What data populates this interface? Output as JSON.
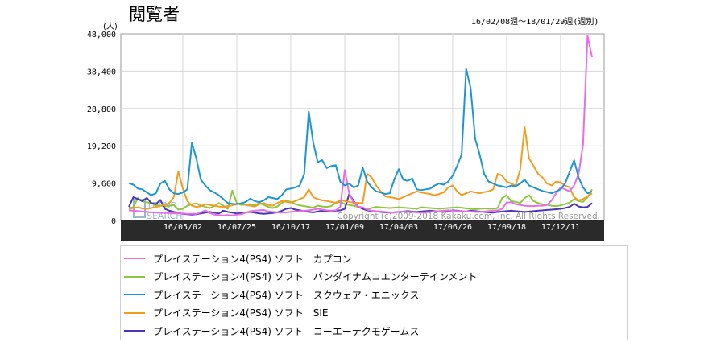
{
  "header": {
    "title": "閲覧者",
    "date_range": "16/02/08週～18/01/29週(週別)",
    "unit": "(人)"
  },
  "watermark": {
    "logo_line1": "TREND",
    "logo_line2": "SEARCH",
    "copyright": "Copyright (c)2009-2018 Kakaku.com, Inc. All Rights Reserved."
  },
  "chart_data": {
    "type": "line",
    "x": [
      "16/02/08",
      "16/02/15",
      "16/02/22",
      "16/02/29",
      "16/03/07",
      "16/03/14",
      "16/03/21",
      "16/03/28",
      "16/04/04",
      "16/04/11",
      "16/04/18",
      "16/04/25",
      "16/05/02",
      "16/05/09",
      "16/05/16",
      "16/05/23",
      "16/05/30",
      "16/06/06",
      "16/06/13",
      "16/06/20",
      "16/06/27",
      "16/07/04",
      "16/07/11",
      "16/07/18",
      "16/07/25",
      "16/08/01",
      "16/08/08",
      "16/08/15",
      "16/08/22",
      "16/08/29",
      "16/09/05",
      "16/09/12",
      "16/09/19",
      "16/09/26",
      "16/10/03",
      "16/10/10",
      "16/10/17",
      "16/10/24",
      "16/10/31",
      "16/11/07",
      "16/11/14",
      "16/11/21",
      "16/11/28",
      "16/12/05",
      "16/12/12",
      "16/12/19",
      "16/12/26",
      "17/01/02",
      "17/01/09",
      "17/01/16",
      "17/01/23",
      "17/01/30",
      "17/02/06",
      "17/02/13",
      "17/02/20",
      "17/02/27",
      "17/03/06",
      "17/03/13",
      "17/03/20",
      "17/03/27",
      "17/04/03",
      "17/04/10",
      "17/04/17",
      "17/04/24",
      "17/05/01",
      "17/05/08",
      "17/05/15",
      "17/05/22",
      "17/05/29",
      "17/06/05",
      "17/06/12",
      "17/06/19",
      "17/06/26",
      "17/07/03",
      "17/07/10",
      "17/07/17",
      "17/07/24",
      "17/07/31",
      "17/08/07",
      "17/08/14",
      "17/08/21",
      "17/08/28",
      "17/09/04",
      "17/09/11",
      "17/09/18",
      "17/09/25",
      "17/10/02",
      "17/10/09",
      "17/10/16",
      "17/10/23",
      "17/10/30",
      "17/11/06",
      "17/11/13",
      "17/11/20",
      "17/11/27",
      "17/12/04",
      "17/12/11",
      "17/12/18",
      "17/12/25",
      "18/01/01",
      "18/01/08",
      "18/01/15",
      "18/01/22",
      "18/01/29"
    ],
    "x_tick_labels": [
      "16/05/02",
      "16/07/25",
      "16/10/17",
      "17/01/09",
      "17/04/03",
      "17/06/26",
      "17/09/18",
      "17/12/11"
    ],
    "ylim": [
      0,
      48000
    ],
    "yticks": [
      0,
      9600,
      19200,
      28800,
      38400,
      48000
    ],
    "ytick_labels": [
      "0",
      "9,600",
      "19,200",
      "28,800",
      "38,400",
      "48,000"
    ],
    "grid": true,
    "legend_position": "bottom",
    "series": [
      {
        "name": "プレイステーション4(PS4) ソフト　カプコン",
        "color": "#e86ee8",
        "values": [
          2600,
          2500,
          2400,
          2300,
          2200,
          2100,
          2000,
          2000,
          1900,
          1900,
          1800,
          1800,
          1800,
          1700,
          1700,
          1700,
          2100,
          2600,
          1900,
          1500,
          1400,
          1300,
          1400,
          1300,
          1500,
          1600,
          2000,
          2400,
          2500,
          2600,
          2700,
          2300,
          2200,
          2100,
          2000,
          2100,
          2200,
          2300,
          2400,
          2500,
          2600,
          2800,
          3000,
          2800,
          2600,
          2500,
          2600,
          3500,
          13000,
          7000,
          4500,
          3600,
          3400,
          2800,
          2500,
          2400,
          2300,
          2200,
          2100,
          2000,
          2200,
          2300,
          2200,
          2200,
          2100,
          2000,
          2100,
          2200,
          2300,
          2400,
          2500,
          2600,
          2500,
          2400,
          2400,
          2300,
          2300,
          2200,
          2200,
          2300,
          2400,
          2500,
          2600,
          3000,
          4600,
          4700,
          4200,
          4000,
          3800,
          3700,
          3700,
          3800,
          3800,
          4000,
          5200,
          7000,
          8500,
          8000,
          7500,
          9000,
          12000,
          19500,
          47500,
          42000
        ]
      },
      {
        "name": "プレイステーション4(PS4) ソフト　バンダイナムコエンターテインメント",
        "color": "#8dc63f",
        "values": [
          3200,
          3400,
          5800,
          4900,
          4700,
          4400,
          4000,
          3800,
          3600,
          3800,
          4000,
          2800,
          3000,
          3800,
          4200,
          4400,
          3900,
          3500,
          3200,
          3700,
          4500,
          3800,
          3000,
          7700,
          4500,
          4000,
          4100,
          4200,
          3900,
          4500,
          4000,
          3500,
          3200,
          3600,
          4500,
          5100,
          4800,
          4200,
          3900,
          3700,
          3500,
          3300,
          3800,
          3600,
          3500,
          3700,
          4500,
          4800,
          4200,
          4000,
          3800,
          3500,
          3200,
          3000,
          3200,
          3500,
          3400,
          3300,
          3200,
          3300,
          3400,
          3300,
          3200,
          3100,
          3000,
          3400,
          3300,
          3200,
          3100,
          3000,
          3100,
          3200,
          3300,
          3400,
          3300,
          3100,
          3000,
          2900,
          3000,
          3100,
          3000,
          3000,
          3200,
          5800,
          6500,
          5000,
          4800,
          4500,
          5800,
          6500,
          5000,
          4500,
          4200,
          4000,
          3800,
          3700,
          3900,
          4200,
          4600,
          5500,
          5000,
          4800,
          6000,
          8000
        ]
      },
      {
        "name": "プレイステーション4(PS4) ソフト　スクウェア・エニックス",
        "color": "#1e96d2",
        "values": [
          9600,
          9200,
          8200,
          8000,
          7200,
          6500,
          7000,
          9500,
          10200,
          8000,
          7000,
          6800,
          7200,
          8000,
          20000,
          16000,
          10500,
          9000,
          7800,
          7200,
          6500,
          5500,
          4500,
          4300,
          4200,
          4400,
          4800,
          5600,
          5000,
          4700,
          5200,
          6000,
          5800,
          5500,
          6500,
          8000,
          8200,
          8500,
          9000,
          12000,
          28000,
          20000,
          15000,
          15500,
          13500,
          14000,
          14200,
          10000,
          9000,
          9500,
          8500,
          9000,
          13600,
          10000,
          8500,
          7500,
          7200,
          6800,
          7000,
          10500,
          13200,
          10500,
          10200,
          10800,
          8000,
          7800,
          8000,
          8200,
          9000,
          9500,
          9200,
          10000,
          11500,
          14000,
          17000,
          39000,
          34000,
          21000,
          17000,
          12000,
          10000,
          9500,
          9000,
          8800,
          8500,
          9000,
          8800,
          9500,
          10500,
          9000,
          8500,
          8000,
          7600,
          7300,
          7000,
          7500,
          8000,
          9500,
          12500,
          15500,
          11000,
          8500,
          7000,
          7500
        ]
      },
      {
        "name": "プレイステーション4(PS4) ソフト　SIE",
        "color": "#f39c1e",
        "values": [
          3000,
          3200,
          3400,
          3100,
          3000,
          3200,
          3500,
          3800,
          4000,
          4500,
          6000,
          12600,
          8200,
          5000,
          3800,
          3500,
          3700,
          4200,
          4000,
          3800,
          3600,
          3500,
          3700,
          3900,
          4200,
          4500,
          4000,
          3800,
          3600,
          4200,
          4500,
          4000,
          3800,
          4500,
          5000,
          4800,
          4600,
          5000,
          5500,
          6000,
          8000,
          6000,
          5500,
          5200,
          5000,
          4800,
          4600,
          5200,
          5000,
          4800,
          4600,
          4500,
          4500,
          12000,
          11000,
          9000,
          7500,
          6200,
          6000,
          5800,
          5500,
          6000,
          6500,
          7000,
          7500,
          7200,
          7000,
          6800,
          6500,
          6800,
          7200,
          8500,
          9000,
          7500,
          6500,
          7000,
          7500,
          7200,
          7000,
          7300,
          7500,
          8000,
          12000,
          11500,
          10000,
          9500,
          9000,
          13000,
          24000,
          16000,
          14000,
          12000,
          11000,
          9500,
          9000,
          10000,
          9800,
          9000,
          8500,
          6000,
          5200,
          5500,
          6200,
          7000
        ]
      },
      {
        "name": "プレイステーション4(PS4) ソフト　コーエーテクモゲームス",
        "color": "#4a35b5",
        "values": [
          3500,
          6000,
          5500,
          5000,
          5800,
          4500,
          4200,
          5300,
          3000,
          2500,
          2200,
          2000,
          1700,
          1600,
          1500,
          1600,
          1800,
          2000,
          2200,
          2000,
          1800,
          2500,
          2200,
          2000,
          1800,
          1900,
          2100,
          2200,
          2000,
          1800,
          1700,
          1800,
          1900,
          2100,
          2500,
          3000,
          3200,
          2800,
          2600,
          2400,
          2200,
          2100,
          2300,
          2500,
          2400,
          2300,
          2500,
          2600,
          3000,
          6800,
          5000,
          3500,
          3000,
          2600,
          2400,
          2300,
          2200,
          2100,
          2000,
          2100,
          2200,
          2300,
          2400,
          2300,
          2200,
          2300,
          2400,
          2500,
          2400,
          2300,
          2200,
          2400,
          2600,
          2500,
          2400,
          2300,
          2500,
          2400,
          2300,
          2200,
          2100,
          2000,
          2200,
          2300,
          2400,
          2500,
          2400,
          2300,
          2200,
          2300,
          2400,
          2500,
          2600,
          2700,
          2800,
          2900,
          3000,
          3200,
          3500,
          4300,
          3600,
          3400,
          3500,
          4500
        ]
      }
    ]
  }
}
